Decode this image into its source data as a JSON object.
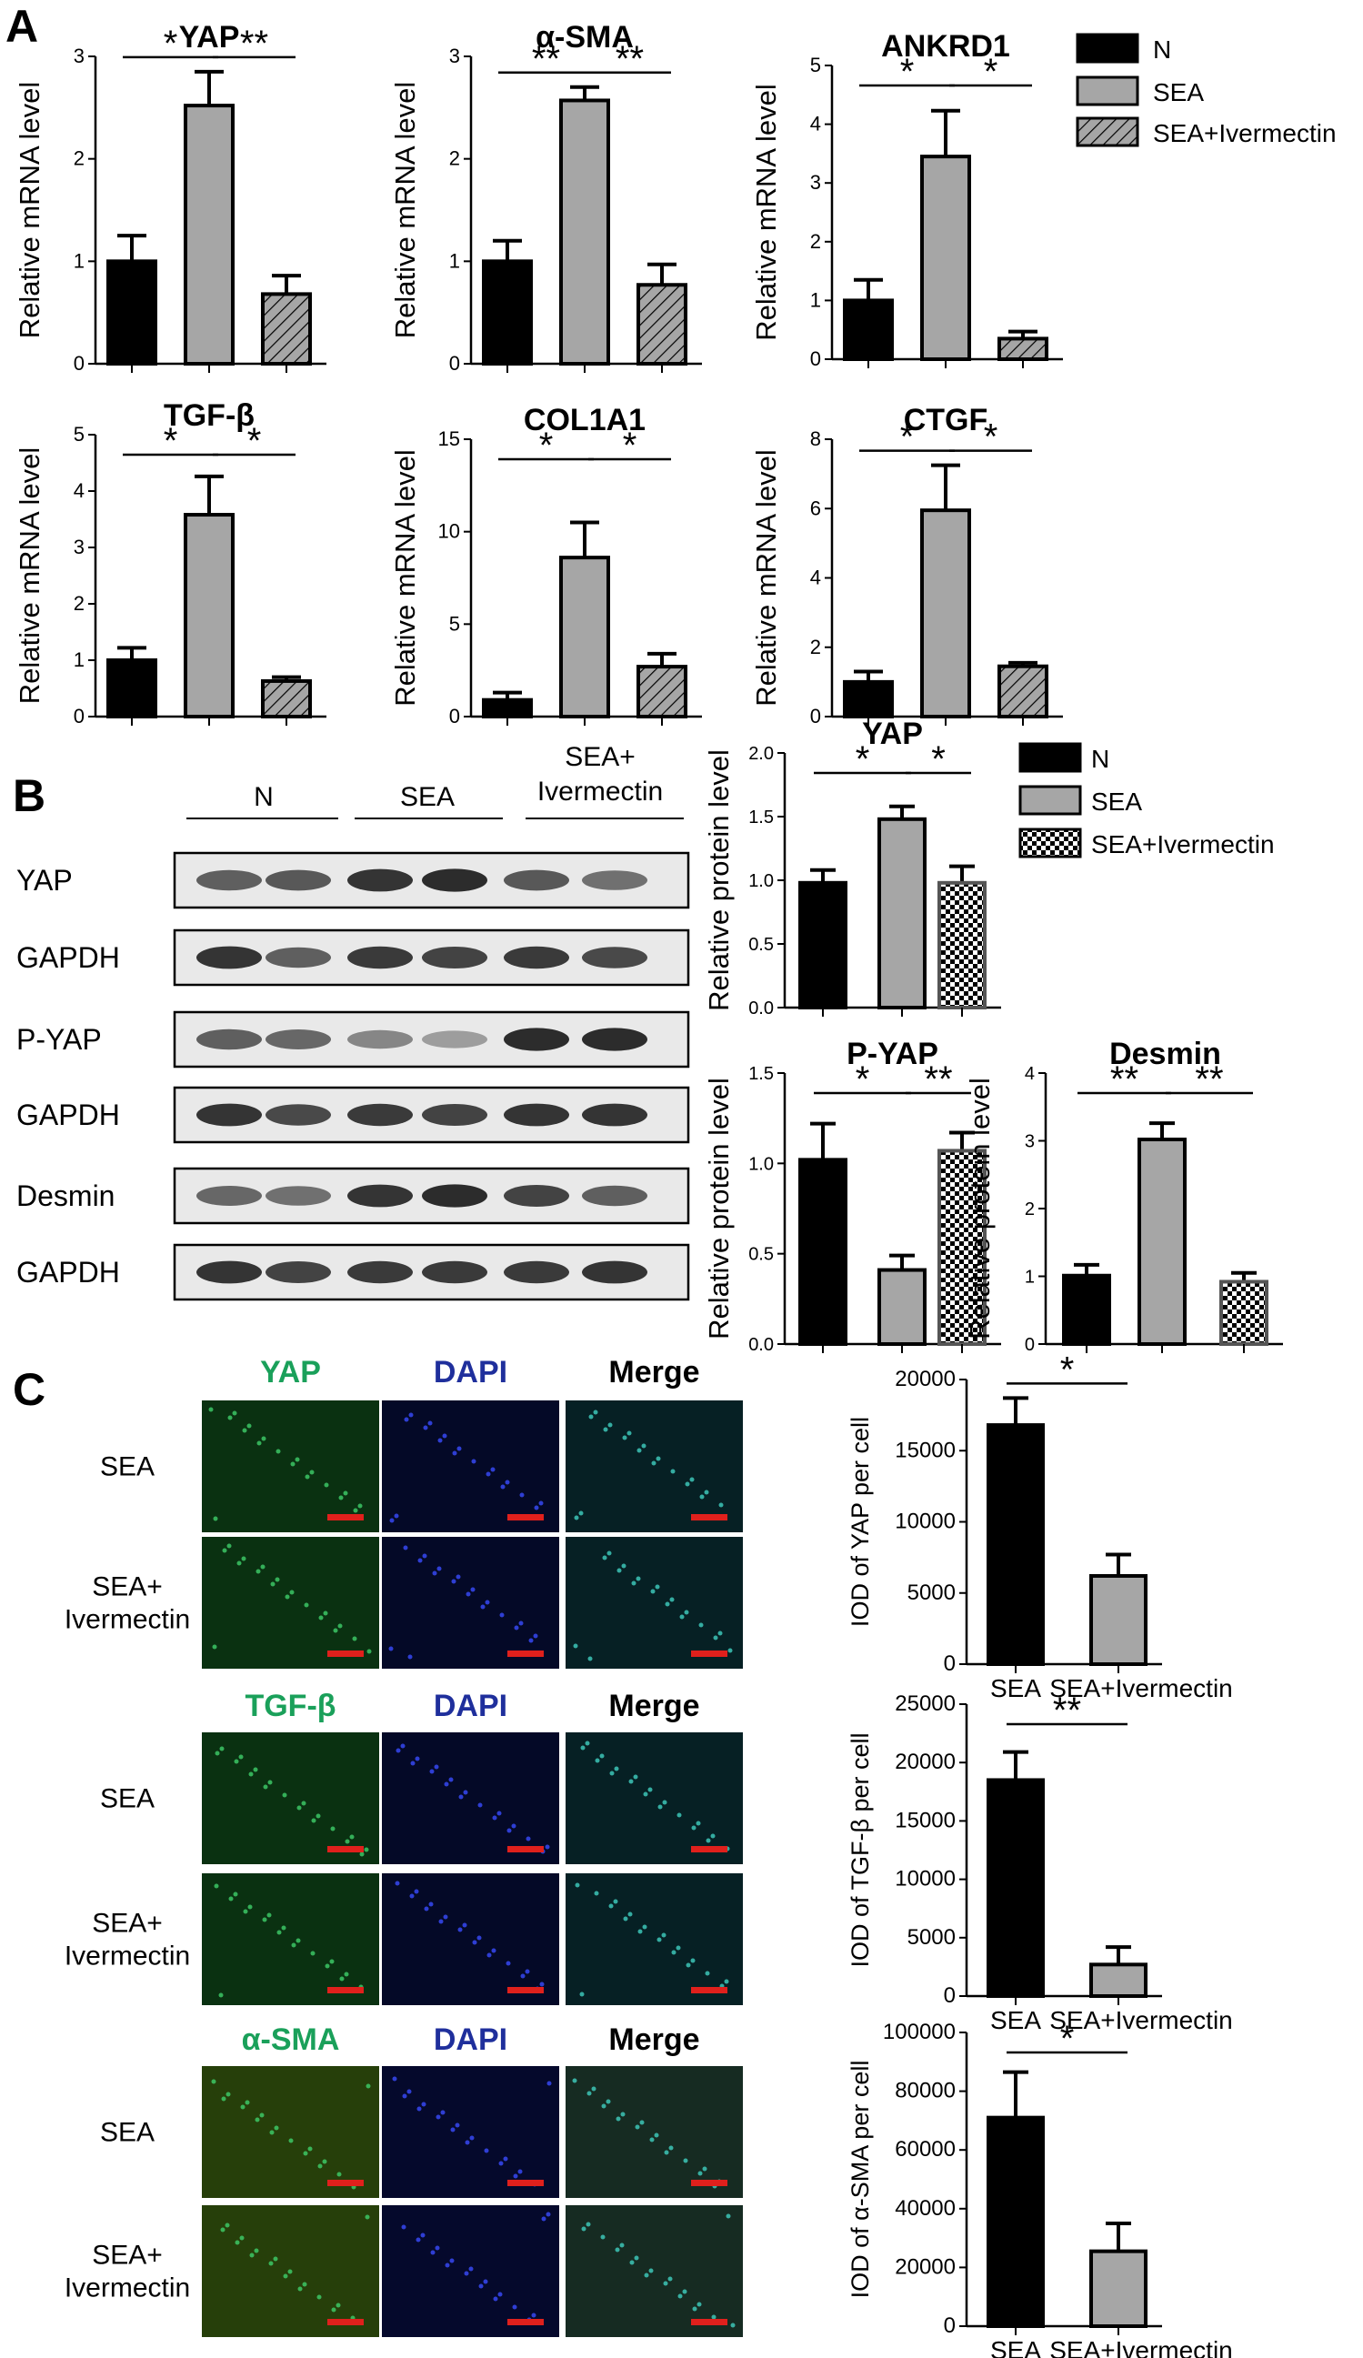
{
  "panel_labels": [
    "A",
    "B",
    "C"
  ],
  "legend_a": [
    "N",
    "SEA",
    "SEA+Ivermectin"
  ],
  "legend_b": [
    "N",
    "SEA",
    "SEA+Ivermectin"
  ],
  "colors": {
    "N": "#000000",
    "SEA": "#a6a6a6",
    "SEA+Ivermectin": "#a6a6a6",
    "green": "#1aa05a",
    "blue": "#1f2f9c",
    "scalebar": "#e0201c"
  },
  "western_blot": {
    "groups": [
      "N",
      "SEA",
      "SEA+\nIvermectin"
    ],
    "rows": [
      "YAP",
      "GAPDH",
      "P-YAP",
      "GAPDH",
      "Desmin",
      "GAPDH"
    ]
  },
  "if_images": [
    {
      "headers": [
        "YAP",
        "DAPI",
        "Merge"
      ],
      "rows": [
        "SEA",
        "SEA+\nIvermectin"
      ]
    },
    {
      "headers": [
        "TGF-β",
        "DAPI",
        "Merge"
      ],
      "rows": [
        "SEA",
        "SEA+\nIvermectin"
      ]
    },
    {
      "headers": [
        "α-SMA",
        "DAPI",
        "Merge"
      ],
      "rows": [
        "SEA",
        "SEA+\nIvermectin"
      ]
    }
  ],
  "chart_data": [
    {
      "id": "a_yap",
      "type": "bar",
      "title": "YAP",
      "ylabel": "Relative mRNA level",
      "categories": [
        "N",
        "SEA",
        "SEA+Ivermectin"
      ],
      "values": [
        1.0,
        2.52,
        0.68
      ],
      "errors": [
        0.25,
        0.33,
        0.18
      ],
      "ylim": [
        0,
        3
      ],
      "yticks": [
        0,
        1,
        2,
        3
      ],
      "sig": [
        {
          "from": 0,
          "to": 1,
          "label": "*"
        },
        {
          "from": 1,
          "to": 2,
          "label": "**"
        }
      ]
    },
    {
      "id": "a_asma",
      "type": "bar",
      "title": "α-SMA",
      "ylabel": "Relative mRNA level",
      "categories": [
        "N",
        "SEA",
        "SEA+Ivermectin"
      ],
      "values": [
        1.0,
        2.57,
        0.77
      ],
      "errors": [
        0.2,
        0.13,
        0.2
      ],
      "ylim": [
        0,
        3
      ],
      "yticks": [
        0,
        1,
        2,
        3
      ],
      "sig": [
        {
          "from": 0,
          "to": 1,
          "label": "**"
        },
        {
          "from": 1,
          "to": 2,
          "label": "**"
        }
      ]
    },
    {
      "id": "a_ankrd1",
      "type": "bar",
      "title": "ANKRD1",
      "ylabel": "Relative mRNA level",
      "categories": [
        "N",
        "SEA",
        "SEA+Ivermectin"
      ],
      "values": [
        1.0,
        3.45,
        0.35
      ],
      "errors": [
        0.35,
        0.78,
        0.12
      ],
      "ylim": [
        0,
        5
      ],
      "yticks": [
        0,
        1,
        2,
        3,
        4,
        5
      ],
      "sig": [
        {
          "from": 0,
          "to": 1,
          "label": "*"
        },
        {
          "from": 1,
          "to": 2,
          "label": "*"
        }
      ]
    },
    {
      "id": "a_tgfb",
      "type": "bar",
      "title": "TGF-β",
      "ylabel": "Relative mRNA level",
      "categories": [
        "N",
        "SEA",
        "SEA+Ivermectin"
      ],
      "values": [
        1.0,
        3.58,
        0.63
      ],
      "errors": [
        0.22,
        0.68,
        0.07
      ],
      "ylim": [
        0,
        5
      ],
      "yticks": [
        0,
        1,
        2,
        3,
        4,
        5
      ],
      "sig": [
        {
          "from": 0,
          "to": 1,
          "label": "*"
        },
        {
          "from": 1,
          "to": 2,
          "label": "*"
        }
      ]
    },
    {
      "id": "a_col1a1",
      "type": "bar",
      "title": "COL1A1",
      "ylabel": "Relative mRNA level",
      "categories": [
        "N",
        "SEA",
        "SEA+Ivermectin"
      ],
      "values": [
        0.9,
        8.6,
        2.7
      ],
      "errors": [
        0.4,
        1.9,
        0.7
      ],
      "ylim": [
        0,
        15
      ],
      "yticks": [
        0,
        5,
        10,
        15
      ],
      "sig": [
        {
          "from": 0,
          "to": 1,
          "label": "*"
        },
        {
          "from": 1,
          "to": 2,
          "label": "*"
        }
      ]
    },
    {
      "id": "a_ctgf",
      "type": "bar",
      "title": "CTGF",
      "ylabel": "Relative mRNA level",
      "categories": [
        "N",
        "SEA",
        "SEA+Ivermectin"
      ],
      "values": [
        1.0,
        5.95,
        1.45
      ],
      "errors": [
        0.3,
        1.3,
        0.1
      ],
      "ylim": [
        0,
        8
      ],
      "yticks": [
        0,
        2,
        4,
        6,
        8
      ],
      "sig": [
        {
          "from": 0,
          "to": 1,
          "label": "*"
        },
        {
          "from": 1,
          "to": 2,
          "label": "*"
        }
      ]
    },
    {
      "id": "b_yap",
      "type": "bar",
      "title": "YAP",
      "ylabel": "Relative protein level",
      "categories": [
        "N",
        "SEA",
        "SEA+Ivermectin"
      ],
      "values": [
        0.98,
        1.48,
        0.98
      ],
      "errors": [
        0.1,
        0.1,
        0.13
      ],
      "ylim": [
        0,
        2.0
      ],
      "yticks": [
        0,
        0.5,
        1.0,
        1.5,
        2.0
      ],
      "sig": [
        {
          "from": 0,
          "to": 1,
          "label": "*"
        },
        {
          "from": 1,
          "to": 2,
          "label": "*"
        }
      ]
    },
    {
      "id": "b_pyap",
      "type": "bar",
      "title": "P-YAP",
      "ylabel": "Relative protein level",
      "categories": [
        "N",
        "SEA",
        "SEA+Ivermectin"
      ],
      "values": [
        1.02,
        0.41,
        1.07
      ],
      "errors": [
        0.2,
        0.08,
        0.1
      ],
      "ylim": [
        0,
        1.5
      ],
      "yticks": [
        0,
        0.5,
        1.0,
        1.5
      ],
      "sig": [
        {
          "from": 0,
          "to": 1,
          "label": "*"
        },
        {
          "from": 1,
          "to": 2,
          "label": "**"
        }
      ]
    },
    {
      "id": "b_desmin",
      "type": "bar",
      "title": "Desmin",
      "ylabel": "Relative protein level",
      "categories": [
        "N",
        "SEA",
        "SEA+Ivermectin"
      ],
      "values": [
        1.01,
        3.02,
        0.92
      ],
      "errors": [
        0.16,
        0.24,
        0.13
      ],
      "ylim": [
        0,
        4
      ],
      "yticks": [
        0,
        1,
        2,
        3,
        4
      ],
      "sig": [
        {
          "from": 0,
          "to": 1,
          "label": "**"
        },
        {
          "from": 1,
          "to": 2,
          "label": "**"
        }
      ]
    },
    {
      "id": "c_yap",
      "type": "bar",
      "title": "",
      "ylabel": "IOD of YAP per cell",
      "categories": [
        "SEA",
        "SEA+Ivermectin"
      ],
      "values": [
        16800,
        6200
      ],
      "errors": [
        1900,
        1500
      ],
      "ylim": [
        0,
        20000
      ],
      "yticks": [
        0,
        5000,
        10000,
        15000,
        20000
      ],
      "sig": [
        {
          "from": 0,
          "to": 1,
          "label": "*"
        }
      ]
    },
    {
      "id": "c_tgfb",
      "type": "bar",
      "title": "",
      "ylabel": "IOD of TGF-β per cell",
      "categories": [
        "SEA",
        "SEA+Ivermectin"
      ],
      "values": [
        18500,
        2700
      ],
      "errors": [
        2400,
        1500
      ],
      "ylim": [
        0,
        25000
      ],
      "yticks": [
        0,
        5000,
        10000,
        15000,
        20000,
        25000
      ],
      "sig": [
        {
          "from": 0,
          "to": 1,
          "label": "**"
        }
      ]
    },
    {
      "id": "c_asma",
      "type": "bar",
      "title": "",
      "ylabel": "IOD of α-SMA per cell",
      "categories": [
        "SEA",
        "SEA+Ivermectin"
      ],
      "values": [
        71000,
        25500
      ],
      "errors": [
        15500,
        9500
      ],
      "ylim": [
        0,
        100000
      ],
      "yticks": [
        0,
        20000,
        40000,
        60000,
        80000,
        100000
      ],
      "sig": [
        {
          "from": 0,
          "to": 1,
          "label": "*"
        }
      ]
    }
  ]
}
